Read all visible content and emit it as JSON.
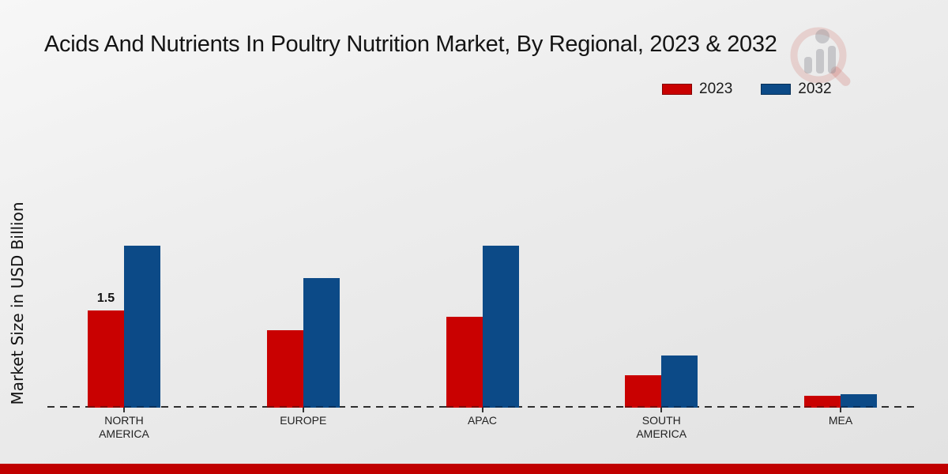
{
  "page": {
    "footer_bar_color": "#c00000",
    "background_color": "#ececec"
  },
  "watermark": {
    "icon": "magnifier-bar-chart-logo",
    "ring_color": "#c0392b",
    "bars_color": "#8e8e96"
  },
  "chart_data": {
    "type": "bar",
    "title": "Acids And Nutrients In Poultry Nutrition Market, By Regional, 2023 & 2032",
    "ylabel": "Market Size in USD Billion",
    "xlabel": "",
    "categories": [
      "NORTH AMERICA",
      "EUROPE",
      "APAC",
      "SOUTH AMERICA",
      "MEA"
    ],
    "series": [
      {
        "name": "2023",
        "color": "#c90101",
        "dark_color": "#7e0101",
        "values": [
          1.5,
          1.2,
          1.4,
          0.5,
          0.18
        ]
      },
      {
        "name": "2032",
        "color": "#0c4a87",
        "dark_color": "#07305a",
        "values": [
          2.5,
          2.0,
          2.5,
          0.8,
          0.21
        ]
      }
    ],
    "value_labels": [
      {
        "category_index": 0,
        "series_index": 0,
        "text": "1.5"
      }
    ],
    "ylim": [
      0,
      3
    ],
    "grid": false,
    "legend_position": "top-right",
    "baseline_style": "dashed"
  }
}
